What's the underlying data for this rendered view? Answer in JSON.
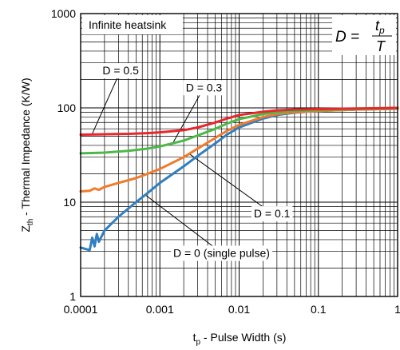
{
  "chart_data": {
    "type": "line",
    "title": "",
    "xlabel": "t",
    "xlabel_sub": "p",
    "xlabel_rest": " - Pulse Width (s)",
    "ylabel": "Z",
    "ylabel_sub": "th",
    "ylabel_rest": " - Thermal Impedance (K/W)",
    "x_scale": "log",
    "y_scale": "log",
    "xlim": [
      0.0001,
      1
    ],
    "ylim": [
      1,
      1000
    ],
    "x_ticks": [
      {
        "value": 0.0001,
        "label": "0.0001"
      },
      {
        "value": 0.001,
        "label": "0.001"
      },
      {
        "value": 0.01,
        "label": "0.01"
      },
      {
        "value": 0.1,
        "label": "0.1"
      },
      {
        "value": 1,
        "label": "1"
      }
    ],
    "y_ticks": [
      {
        "value": 1,
        "label": "1"
      },
      {
        "value": 10,
        "label": "10"
      },
      {
        "value": 100,
        "label": "100"
      },
      {
        "value": 1000,
        "label": "1000"
      }
    ],
    "grid": true,
    "annotations": {
      "heatsink": "Infinite heatsink",
      "formula_lhs": "D = ",
      "formula_num": "t",
      "formula_num_sub": "p",
      "formula_den": "T"
    },
    "series": [
      {
        "label": "D = 0.5",
        "color": "#e8262b",
        "x": [
          0.0001,
          0.0002,
          0.0004,
          0.0007,
          0.001,
          0.002,
          0.003,
          0.005,
          0.007,
          0.01,
          0.02,
          0.03,
          0.05,
          0.1,
          0.2,
          0.5,
          1
        ],
        "y": [
          52,
          52.5,
          53,
          54,
          55,
          58,
          62,
          70,
          77,
          84,
          91,
          94,
          96,
          97,
          98,
          99,
          100
        ]
      },
      {
        "label": "D = 0.3",
        "color": "#4db848",
        "x": [
          0.0001,
          0.0002,
          0.0004,
          0.0007,
          0.001,
          0.002,
          0.003,
          0.005,
          0.007,
          0.01,
          0.02,
          0.03,
          0.05,
          0.1,
          0.2,
          0.5,
          1
        ],
        "y": [
          33,
          33.5,
          35,
          37,
          39,
          45,
          51,
          60,
          68,
          76,
          86,
          90,
          93,
          95,
          96.5,
          98,
          99
        ]
      },
      {
        "label": "D = 0.1",
        "color": "#f07b2c",
        "x": [
          0.0001,
          0.00013,
          0.00015,
          0.00017,
          0.0002,
          0.0003,
          0.0005,
          0.0007,
          0.001,
          0.002,
          0.003,
          0.005,
          0.007,
          0.01,
          0.02,
          0.03,
          0.05,
          0.1,
          0.3,
          1
        ],
        "y": [
          13,
          13.2,
          14,
          13.5,
          14.5,
          16,
          18,
          20,
          22.5,
          30,
          37,
          48,
          57,
          66,
          80,
          86,
          90,
          93,
          96,
          98
        ]
      },
      {
        "label": "D = 0 (single pulse)",
        "color": "#2f7fc1",
        "x": [
          0.0001,
          0.00013,
          0.00014,
          0.00015,
          0.00016,
          0.00017,
          0.0002,
          0.0003,
          0.0005,
          0.0007,
          0.001,
          0.002,
          0.003,
          0.005,
          0.007,
          0.01,
          0.02,
          0.03,
          0.05,
          0.1,
          0.3,
          1
        ],
        "y": [
          3.3,
          3.1,
          4.2,
          3.4,
          4.6,
          3.8,
          5,
          7,
          10,
          12.5,
          16,
          24,
          31,
          42,
          52,
          62,
          77,
          84,
          89,
          93,
          96,
          98
        ]
      }
    ],
    "callouts": [
      {
        "series": 0,
        "text": "D = 0.5",
        "anchor": [
          0.00014,
          53
        ],
        "label_at": [
          0.00032,
          250
        ]
      },
      {
        "series": 1,
        "text": "D = 0.3",
        "anchor": [
          0.00145,
          42
        ],
        "label_at": [
          0.0036,
          165
        ]
      },
      {
        "series": 2,
        "text": "D = 0.1",
        "anchor": [
          0.0023,
          33
        ],
        "label_at": [
          0.026,
          7.6
        ]
      },
      {
        "series": 3,
        "text": "D = 0 (single pulse)",
        "anchor": [
          0.00065,
          12
        ],
        "label_at": [
          0.006,
          2.9
        ]
      }
    ]
  }
}
